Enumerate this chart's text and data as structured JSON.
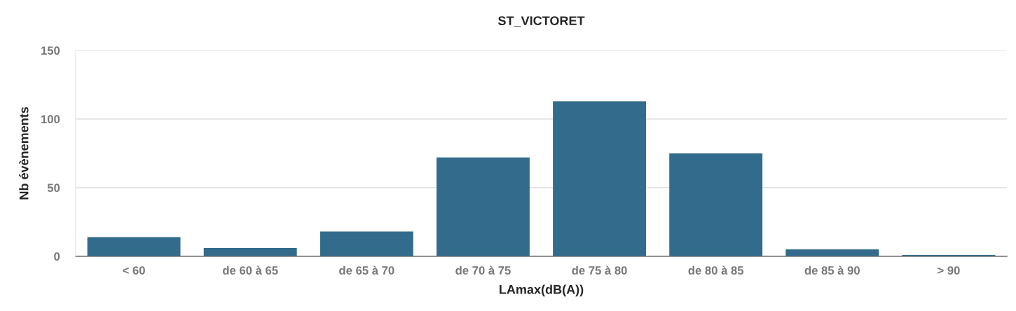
{
  "chart_data": {
    "type": "bar",
    "title": "ST_VICTORET",
    "xlabel": "LAmax(dB(A))",
    "ylabel": "Nb évènements",
    "categories": [
      "< 60",
      "de 60 à 65",
      "de 65 à 70",
      "de 70 à 75",
      "de 75 à 80",
      "de 80 à 85",
      "de 85 à 90",
      "> 90"
    ],
    "values": [
      14,
      6,
      18,
      72,
      113,
      75,
      5,
      1
    ],
    "color": "#336b8c",
    "ylim": [
      0,
      150
    ],
    "yticks": [
      0,
      50,
      100,
      150
    ],
    "grid": "y",
    "legend": false
  }
}
